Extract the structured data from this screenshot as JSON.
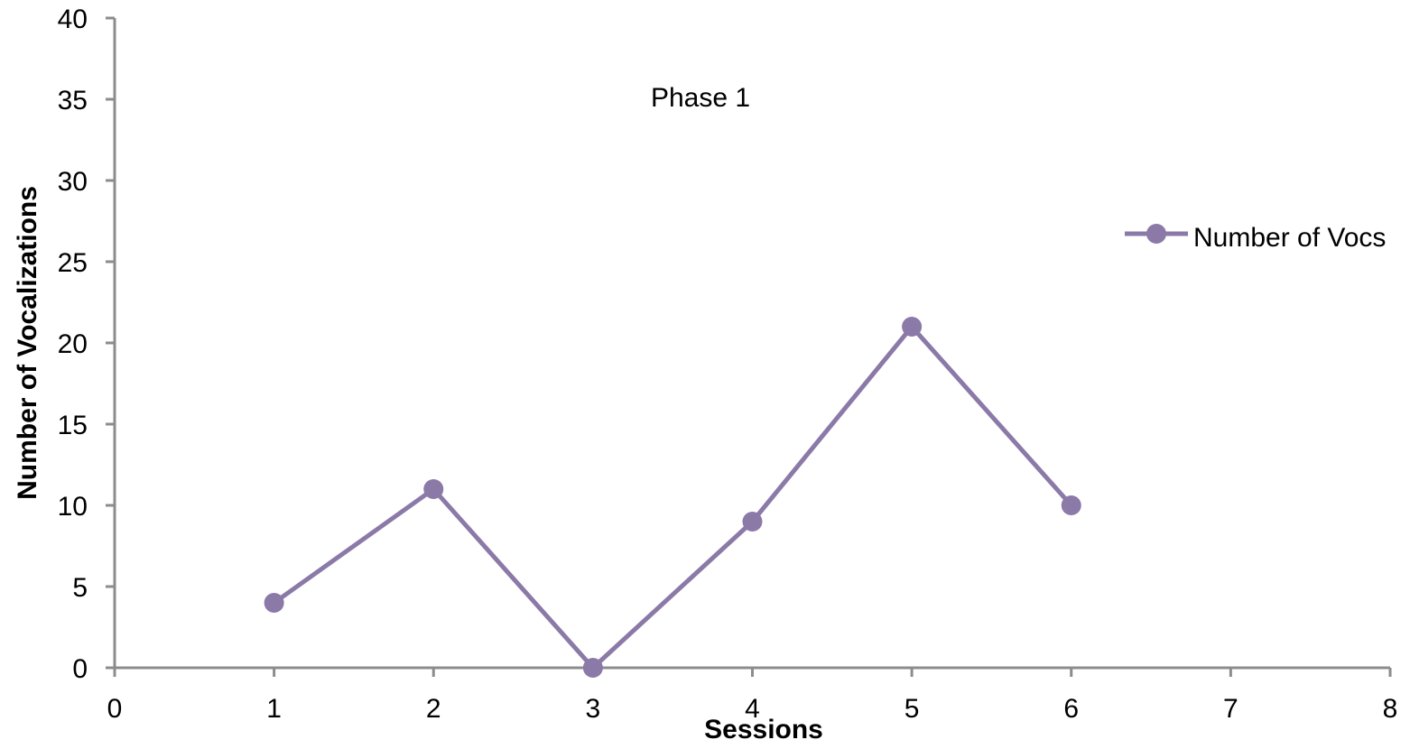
{
  "chart_data": {
    "type": "line",
    "title": "",
    "annotation": "Phase 1",
    "xlabel": "Sessions",
    "ylabel": "Number of Vocalizations",
    "xlim": [
      0,
      8
    ],
    "ylim": [
      0,
      40
    ],
    "x_ticks": [
      0,
      1,
      2,
      3,
      4,
      5,
      6,
      7,
      8
    ],
    "y_ticks": [
      0,
      5,
      10,
      15,
      20,
      25,
      30,
      35,
      40
    ],
    "grid": false,
    "legend_position": "right",
    "series": [
      {
        "name": "Number of Vocs",
        "color": "#8B79A8",
        "marker": "circle",
        "x": [
          1,
          2,
          3,
          4,
          5,
          6
        ],
        "y": [
          4,
          11,
          0,
          9,
          21,
          10
        ]
      }
    ]
  }
}
